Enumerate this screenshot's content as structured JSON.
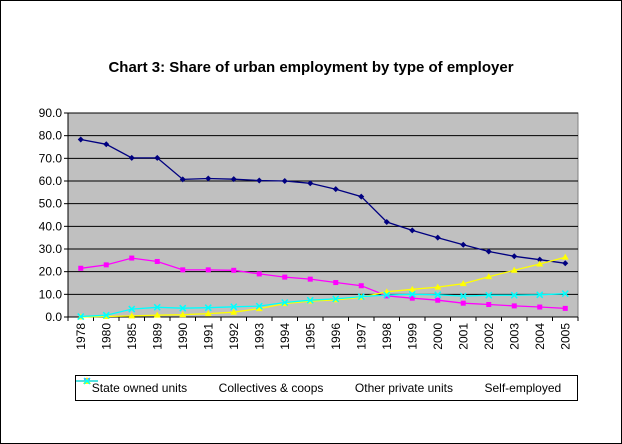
{
  "chart_data": {
    "type": "line",
    "title": "Chart 3: Share of urban employment by type of employer",
    "xlabel": "",
    "ylabel": "",
    "ylim": [
      0,
      90
    ],
    "yticks": [
      "0.0",
      "10.0",
      "20.0",
      "30.0",
      "40.0",
      "50.0",
      "60.0",
      "70.0",
      "80.0",
      "90.0"
    ],
    "categories": [
      "1978",
      "1980",
      "1985",
      "1989",
      "1990",
      "1991",
      "1992",
      "1993",
      "1994",
      "1995",
      "1996",
      "1997",
      "1998",
      "1999",
      "2000",
      "2001",
      "2002",
      "2003",
      "2004",
      "2005"
    ],
    "grid": true,
    "legend_position": "bottom",
    "series": [
      {
        "name": "State owned units",
        "color": "#000080",
        "marker": "diamond",
        "values": [
          78.3,
          76.2,
          70.2,
          70.2,
          60.7,
          61.1,
          60.8,
          60.2,
          60.0,
          59.0,
          56.4,
          53.1,
          41.9,
          38.2,
          35.0,
          31.9,
          28.9,
          26.8,
          25.3,
          23.7
        ]
      },
      {
        "name": "Collectives & coops",
        "color": "#FF00FF",
        "marker": "square",
        "values": [
          21.5,
          23.0,
          26.0,
          24.5,
          20.8,
          20.8,
          20.6,
          19.0,
          17.6,
          16.7,
          15.2,
          13.8,
          9.3,
          8.3,
          7.4,
          6.1,
          5.5,
          4.9,
          4.4,
          3.8
        ]
      },
      {
        "name": "Other private units",
        "color": "#FFFF00",
        "marker": "triangle",
        "values": [
          0,
          0.2,
          0.5,
          0.8,
          1.0,
          1.5,
          2.1,
          3.7,
          5.9,
          7.0,
          7.6,
          8.7,
          11.1,
          12.2,
          13.2,
          14.7,
          17.8,
          20.6,
          23.4,
          26.4
        ]
      },
      {
        "name": "Self-employed",
        "color": "#00FFFF",
        "marker": "x",
        "values": [
          0.2,
          0.8,
          3.5,
          4.3,
          3.9,
          4.1,
          4.5,
          4.8,
          6.4,
          7.4,
          8.0,
          9.0,
          9.7,
          10.0,
          9.8,
          9.2,
          9.6,
          9.6,
          9.8,
          10.3
        ]
      }
    ]
  }
}
